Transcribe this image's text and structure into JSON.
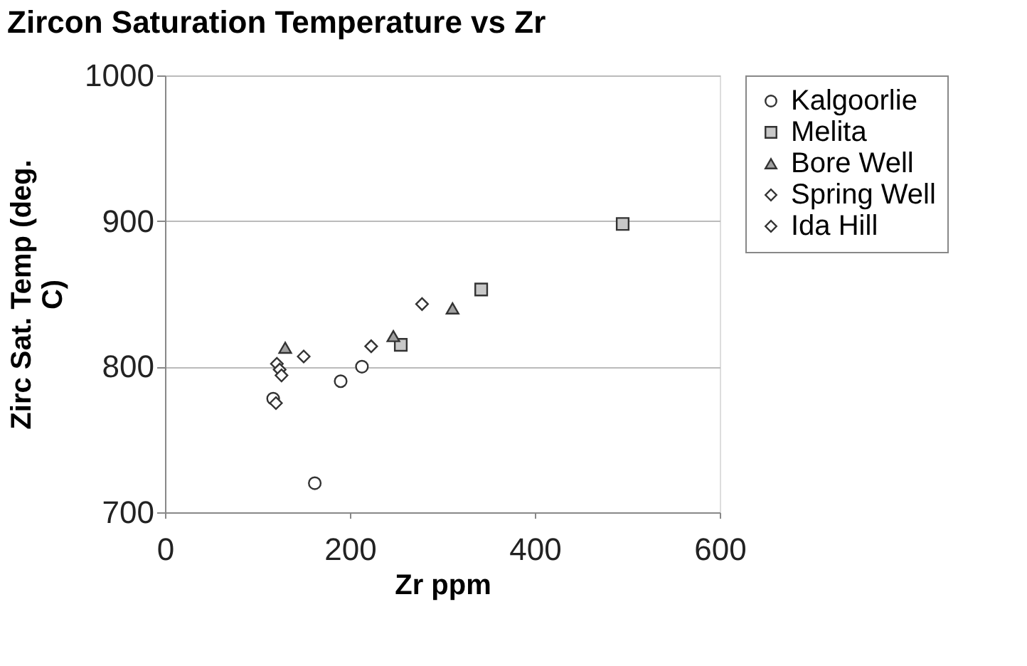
{
  "chart_data": {
    "type": "scatter",
    "title": "Zircon Saturation Temperature vs Zr",
    "xlabel": "Zr ppm",
    "ylabel": "Zirc Sat. Temp (deg. C)",
    "xlim": [
      0,
      600
    ],
    "xticks": [
      0,
      200,
      400,
      600
    ],
    "ylim": [
      700,
      1000
    ],
    "yticks": [
      700,
      800,
      900,
      1000
    ],
    "grid": "y",
    "legend": "right",
    "series": [
      {
        "name": "Kalgoorlie",
        "color": "#ffffff",
        "marker": "circle",
        "x": [
          117,
          162,
          190,
          213
        ],
        "values": [
          778,
          720,
          790,
          800
        ]
      },
      {
        "name": "Melita",
        "color": "#c8c8c8",
        "marker": "square",
        "x": [
          495,
          342,
          255
        ],
        "values": [
          898,
          853,
          815
        ]
      },
      {
        "name": "Bore Well",
        "color": "#a0a0a0",
        "marker": "triangle",
        "x": [
          130,
          247,
          311
        ],
        "values": [
          813,
          821,
          840
        ]
      },
      {
        "name": "Spring Well",
        "color": "#fdfdfd",
        "marker": "diamond",
        "x": [
          150,
          223,
          278
        ],
        "values": [
          807,
          814,
          843
        ]
      },
      {
        "name": "Ida Hill",
        "color": "#fbfbfb",
        "marker": "diamond",
        "x": [
          121,
          124,
          126,
          120
        ],
        "values": [
          802,
          798,
          794,
          775
        ]
      }
    ]
  }
}
